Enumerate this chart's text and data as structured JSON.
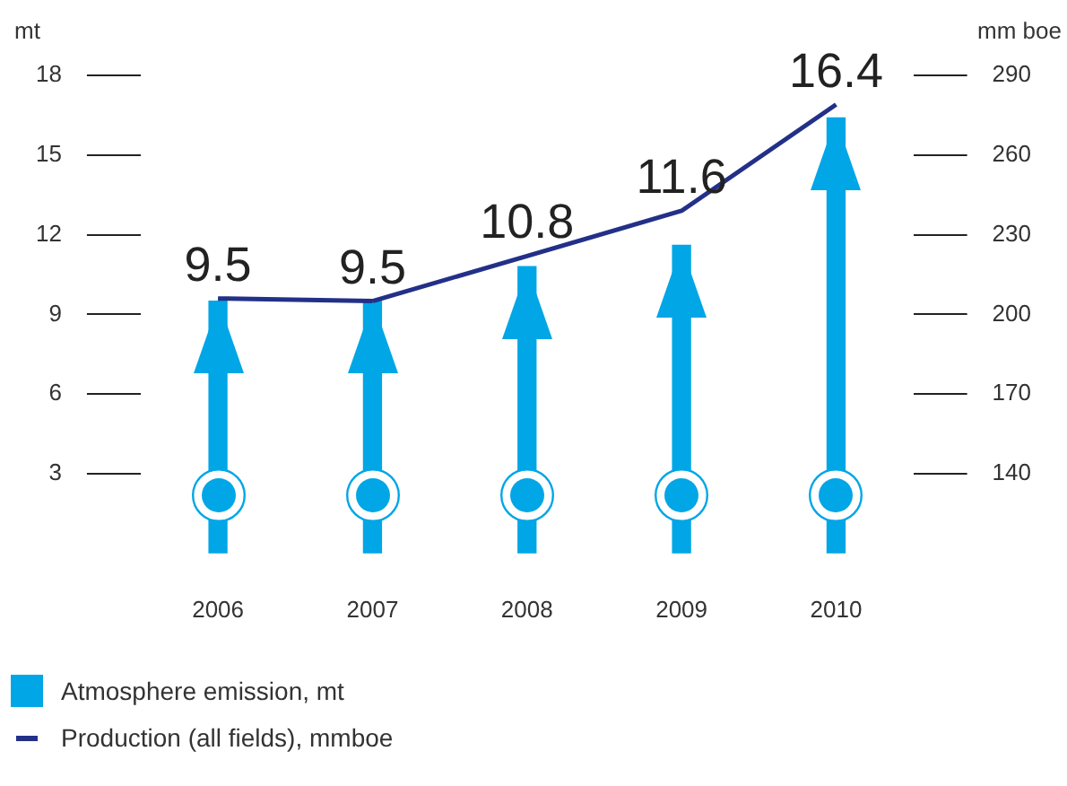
{
  "chart_data": {
    "type": "bar",
    "categories": [
      "2006",
      "2007",
      "2008",
      "2009",
      "2010"
    ],
    "ylabel": "mt",
    "y2label": "mm boe",
    "series": [
      {
        "name": "Atmosphere emission, mt",
        "color": "#00a6e6",
        "values": [
          9.5,
          9.5,
          10.8,
          11.6,
          16.4
        ],
        "value_labels": [
          "9.5",
          "9.5",
          "10.8",
          "11.6",
          "16.4"
        ]
      },
      {
        "name": "Production (all fields), mmboe",
        "type": "line",
        "axis": "y2",
        "color": "#233088",
        "values": [
          206,
          205,
          222,
          239,
          279
        ]
      }
    ],
    "ylim": [
      0,
      18
    ],
    "yticks": [
      3,
      6,
      9,
      12,
      15,
      18
    ],
    "y2lim": [
      110,
      290
    ],
    "y2ticks": [
      140,
      170,
      200,
      230,
      260,
      290
    ],
    "grid": false,
    "legend": "bottom",
    "marker": "none"
  }
}
